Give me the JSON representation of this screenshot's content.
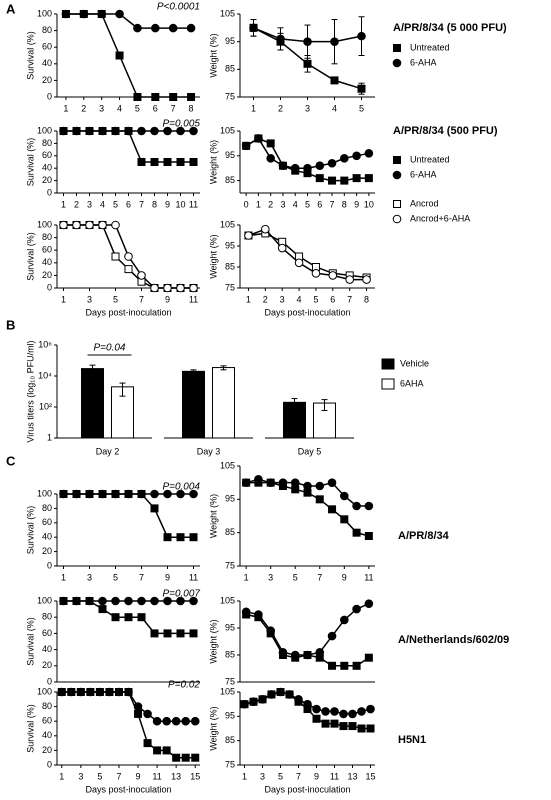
{
  "panel_labels": [
    "A",
    "B",
    "C"
  ],
  "chart_data": [
    {
      "type": "line",
      "ylabel": "Survival (%)",
      "x": [
        1,
        2,
        3,
        4,
        5,
        6,
        7,
        8
      ],
      "xlim": [
        0.5,
        8.5
      ],
      "xticks": [
        1,
        2,
        3,
        4,
        5,
        6,
        7,
        8
      ],
      "ylim": [
        0,
        100
      ],
      "yticks": [
        0,
        20,
        40,
        60,
        80,
        100
      ],
      "annotation": "P<0.0001",
      "line_color": "#000000",
      "series": [
        {
          "marker": "square",
          "fill": "#000000",
          "values": [
            100,
            100,
            100,
            50,
            0,
            0,
            0,
            0
          ]
        },
        {
          "marker": "circle",
          "fill": "#000000",
          "values": [
            100,
            100,
            100,
            100,
            83,
            83,
            83,
            83
          ]
        }
      ]
    },
    {
      "type": "line",
      "ylabel": "Weight (%)",
      "label": "A/PR/8/34 (5 000 PFU)",
      "legend": true,
      "x": [
        1,
        2,
        3,
        4,
        5
      ],
      "xlim": [
        0.5,
        5.5
      ],
      "xticks": [
        1,
        2,
        3,
        4,
        5
      ],
      "ylim": [
        75,
        105
      ],
      "yticks": [
        75,
        85,
        95,
        105
      ],
      "line_color": "#000000",
      "series": [
        {
          "name": "Untreated",
          "marker": "square",
          "fill": "#000000",
          "values": [
            100,
            95,
            87,
            81,
            78
          ],
          "errors": [
            3,
            3,
            3,
            1,
            2
          ]
        },
        {
          "name": "6-AHA",
          "marker": "circle",
          "fill": "#000000",
          "values": [
            100,
            96,
            95,
            95,
            97
          ],
          "errors": [
            3,
            4,
            6,
            8,
            7
          ]
        }
      ]
    },
    {
      "type": "line",
      "ylabel": "Survival (%)",
      "x": [
        1,
        2,
        3,
        4,
        5,
        6,
        7,
        8,
        9,
        10,
        11
      ],
      "xlim": [
        0.5,
        11.5
      ],
      "xticks": [
        1,
        2,
        3,
        4,
        5,
        6,
        7,
        8,
        9,
        10,
        11
      ],
      "ylim": [
        0,
        100
      ],
      "yticks": [
        0,
        20,
        40,
        60,
        80,
        100
      ],
      "annotation": "P=0.005",
      "line_color": "#000000",
      "series": [
        {
          "marker": "square",
          "fill": "#000000",
          "values": [
            100,
            100,
            100,
            100,
            100,
            100,
            50,
            50,
            50,
            50,
            50
          ]
        },
        {
          "marker": "circle",
          "fill": "#000000",
          "values": [
            100,
            100,
            100,
            100,
            100,
            100,
            100,
            100,
            100,
            100,
            100
          ]
        }
      ]
    },
    {
      "type": "line",
      "ylabel": "Weight (%)",
      "label": "A/PR/8/34 (500 PFU)",
      "legend": true,
      "x": [
        0,
        1,
        2,
        3,
        4,
        5,
        6,
        7,
        8,
        9,
        10
      ],
      "xlim": [
        -0.5,
        10.5
      ],
      "xticks": [
        0,
        1,
        2,
        3,
        4,
        5,
        6,
        7,
        8,
        9,
        10
      ],
      "ylim": [
        80,
        105
      ],
      "yticks": [
        85,
        95,
        105
      ],
      "line_color": "#000000",
      "series": [
        {
          "name": "Untreated",
          "marker": "square",
          "fill": "#000000",
          "values": [
            99,
            102,
            100,
            91,
            89,
            88,
            86,
            85,
            85,
            86,
            86
          ]
        },
        {
          "name": "6-AHA",
          "marker": "circle",
          "fill": "#000000",
          "values": [
            99,
            102,
            94,
            91,
            90,
            90,
            91,
            92,
            94,
            95,
            96
          ]
        }
      ]
    },
    {
      "type": "line",
      "ylabel": "Survival (%)",
      "xlabel": "Days post-inoculation",
      "x": [
        1,
        2,
        3,
        4,
        5,
        6,
        7,
        8,
        9,
        10,
        11
      ],
      "xlim": [
        0.5,
        11.5
      ],
      "xticks": [
        1,
        3,
        5,
        7,
        9,
        11
      ],
      "ylim": [
        0,
        100
      ],
      "yticks": [
        0,
        20,
        40,
        60,
        80,
        100
      ],
      "line_color": "#000000",
      "series": [
        {
          "marker": "square",
          "fill": "#ffffff",
          "values": [
            100,
            100,
            100,
            100,
            50,
            30,
            10,
            0,
            0,
            0,
            0
          ]
        },
        {
          "marker": "circle",
          "fill": "#ffffff",
          "values": [
            100,
            100,
            100,
            100,
            100,
            50,
            20,
            0,
            0,
            0,
            0
          ]
        }
      ]
    },
    {
      "type": "line",
      "ylabel": "Weight (%)",
      "xlabel": "Days post-inoculation",
      "legend": true,
      "x": [
        1,
        2,
        3,
        4,
        5,
        6,
        7,
        8
      ],
      "xlim": [
        0.5,
        8.5
      ],
      "xticks": [
        1,
        2,
        3,
        4,
        5,
        6,
        7,
        8
      ],
      "ylim": [
        75,
        105
      ],
      "yticks": [
        75,
        85,
        95,
        105
      ],
      "line_color": "#000000",
      "series": [
        {
          "name": "Ancrod",
          "marker": "square",
          "fill": "#ffffff",
          "values": [
            100,
            101,
            97,
            90,
            85,
            82,
            81,
            80
          ]
        },
        {
          "name": "Ancrod+6-AHA",
          "marker": "circle",
          "fill": "#ffffff",
          "values": [
            100,
            103,
            94,
            87,
            82,
            81,
            79,
            79
          ]
        }
      ]
    },
    {
      "type": "bar",
      "ylabel": "Virus titers (log₁₀ PFU/ml)",
      "log_y": true,
      "legend": true,
      "categories": [
        "Day 2",
        "Day 3",
        "Day 5"
      ],
      "ylim": [
        1,
        1000000
      ],
      "yticks": [
        1,
        {
          "value": 100,
          "label": "10²"
        },
        {
          "value": 10000,
          "label": "10⁴"
        },
        {
          "value": 1000000,
          "label": "10⁶"
        }
      ],
      "annotation": "P=0.04",
      "series": [
        {
          "name": "Vehicle",
          "color": "#000000",
          "values": [
            30000,
            20000,
            200
          ],
          "errors": [
            20000,
            5000,
            150
          ]
        },
        {
          "name": "6AHA",
          "color": "#ffffff",
          "values": [
            2000,
            35000,
            180
          ],
          "errors": [
            1500,
            10000,
            120
          ]
        }
      ]
    },
    {
      "type": "line",
      "ylabel": "Survival (%)",
      "x": [
        1,
        2,
        3,
        4,
        5,
        6,
        7,
        8,
        9,
        10,
        11
      ],
      "xlim": [
        0.5,
        11.5
      ],
      "xticks": [
        1,
        3,
        5,
        7,
        9,
        11
      ],
      "ylim": [
        0,
        100
      ],
      "yticks": [
        0,
        20,
        40,
        60,
        80,
        100
      ],
      "annotation": "P=0.004",
      "line_color": "#000000",
      "series": [
        {
          "marker": "square",
          "fill": "#000000",
          "values": [
            100,
            100,
            100,
            100,
            100,
            100,
            100,
            80,
            40,
            40,
            40
          ]
        },
        {
          "marker": "circle",
          "fill": "#000000",
          "values": [
            100,
            100,
            100,
            100,
            100,
            100,
            100,
            100,
            100,
            100,
            100
          ]
        }
      ]
    },
    {
      "type": "line",
      "ylabel": "Weight (%)",
      "label": "A/PR/8/34",
      "x": [
        1,
        2,
        3,
        4,
        5,
        6,
        7,
        8,
        9,
        10,
        11
      ],
      "xlim": [
        0.5,
        11.5
      ],
      "xticks": [
        1,
        3,
        5,
        7,
        9,
        11
      ],
      "ylim": [
        75,
        105
      ],
      "yticks": [
        75,
        85,
        95,
        105
      ],
      "line_color": "#000000",
      "series": [
        {
          "marker": "square",
          "fill": "#000000",
          "values": [
            100,
            100,
            100,
            99,
            98,
            97,
            95,
            92,
            89,
            85,
            84
          ]
        },
        {
          "marker": "circle",
          "fill": "#000000",
          "values": [
            100,
            101,
            100,
            100,
            100,
            99,
            99,
            100,
            96,
            93,
            93
          ]
        }
      ]
    },
    {
      "type": "line",
      "ylabel": "Survival (%)",
      "x": [
        1,
        2,
        3,
        4,
        5,
        6,
        7,
        8,
        9,
        10,
        11
      ],
      "xlim": [
        0.5,
        11.5
      ],
      "ylim": [
        0,
        100
      ],
      "yticks": [
        0,
        20,
        40,
        60,
        80,
        100
      ],
      "annotation": "P=0.007",
      "line_color": "#000000",
      "series": [
        {
          "marker": "square",
          "fill": "#000000",
          "values": [
            100,
            100,
            100,
            90,
            80,
            80,
            80,
            60,
            60,
            60,
            60
          ]
        },
        {
          "marker": "circle",
          "fill": "#000000",
          "values": [
            100,
            100,
            100,
            100,
            100,
            100,
            100,
            100,
            100,
            100,
            100
          ]
        }
      ]
    },
    {
      "type": "line",
      "ylabel": "Weight (%)",
      "label": "A/Netherlands/602/09",
      "x": [
        1,
        2,
        3,
        4,
        5,
        6,
        7,
        8,
        9,
        10,
        11
      ],
      "xlim": [
        0.5,
        11.5
      ],
      "ylim": [
        75,
        105
      ],
      "yticks": [
        75,
        85,
        95,
        105
      ],
      "line_color": "#000000",
      "series": [
        {
          "marker": "square",
          "fill": "#000000",
          "values": [
            100,
            99,
            93,
            85,
            84,
            85,
            84,
            81,
            81,
            81,
            84
          ]
        },
        {
          "marker": "circle",
          "fill": "#000000",
          "values": [
            101,
            100,
            94,
            86,
            85,
            85,
            86,
            92,
            98,
            102,
            104
          ]
        }
      ]
    },
    {
      "type": "line",
      "ylabel": "Survival (%)",
      "xlabel": "Days post-inoculation",
      "x": [
        1,
        2,
        3,
        4,
        5,
        6,
        7,
        8,
        9,
        10,
        11,
        12,
        13,
        14,
        15
      ],
      "xlim": [
        0.5,
        15.5
      ],
      "xticks": [
        1,
        3,
        5,
        7,
        9,
        11,
        13,
        15
      ],
      "ylim": [
        0,
        100
      ],
      "yticks": [
        0,
        20,
        40,
        60,
        80,
        100
      ],
      "annotation": "P=0.02",
      "line_color": "#000000",
      "series": [
        {
          "marker": "square",
          "fill": "#000000",
          "values": [
            100,
            100,
            100,
            100,
            100,
            100,
            100,
            100,
            70,
            30,
            20,
            20,
            10,
            10,
            10
          ]
        },
        {
          "marker": "circle",
          "fill": "#000000",
          "values": [
            100,
            100,
            100,
            100,
            100,
            100,
            100,
            100,
            80,
            70,
            60,
            60,
            60,
            60,
            60
          ]
        }
      ]
    },
    {
      "type": "line",
      "ylabel": "Weight (%)",
      "xlabel": "Days post-inoculation",
      "label": "H5N1",
      "x": [
        1,
        2,
        3,
        4,
        5,
        6,
        7,
        8,
        9,
        10,
        11,
        12,
        13,
        14,
        15
      ],
      "xlim": [
        0.5,
        15.5
      ],
      "xticks": [
        1,
        3,
        5,
        7,
        9,
        11,
        13,
        15
      ],
      "ylim": [
        75,
        105
      ],
      "yticks": [
        75,
        85,
        95,
        105
      ],
      "line_color": "#000000",
      "series": [
        {
          "marker": "square",
          "fill": "#000000",
          "values": [
            100,
            101,
            102,
            104,
            105,
            104,
            101,
            98,
            94,
            92,
            92,
            91,
            91,
            90,
            90
          ]
        },
        {
          "marker": "circle",
          "fill": "#000000",
          "values": [
            100,
            101,
            102,
            104,
            105,
            104,
            102,
            100,
            98,
            97,
            97,
            96,
            96,
            97,
            98
          ]
        }
      ]
    }
  ]
}
